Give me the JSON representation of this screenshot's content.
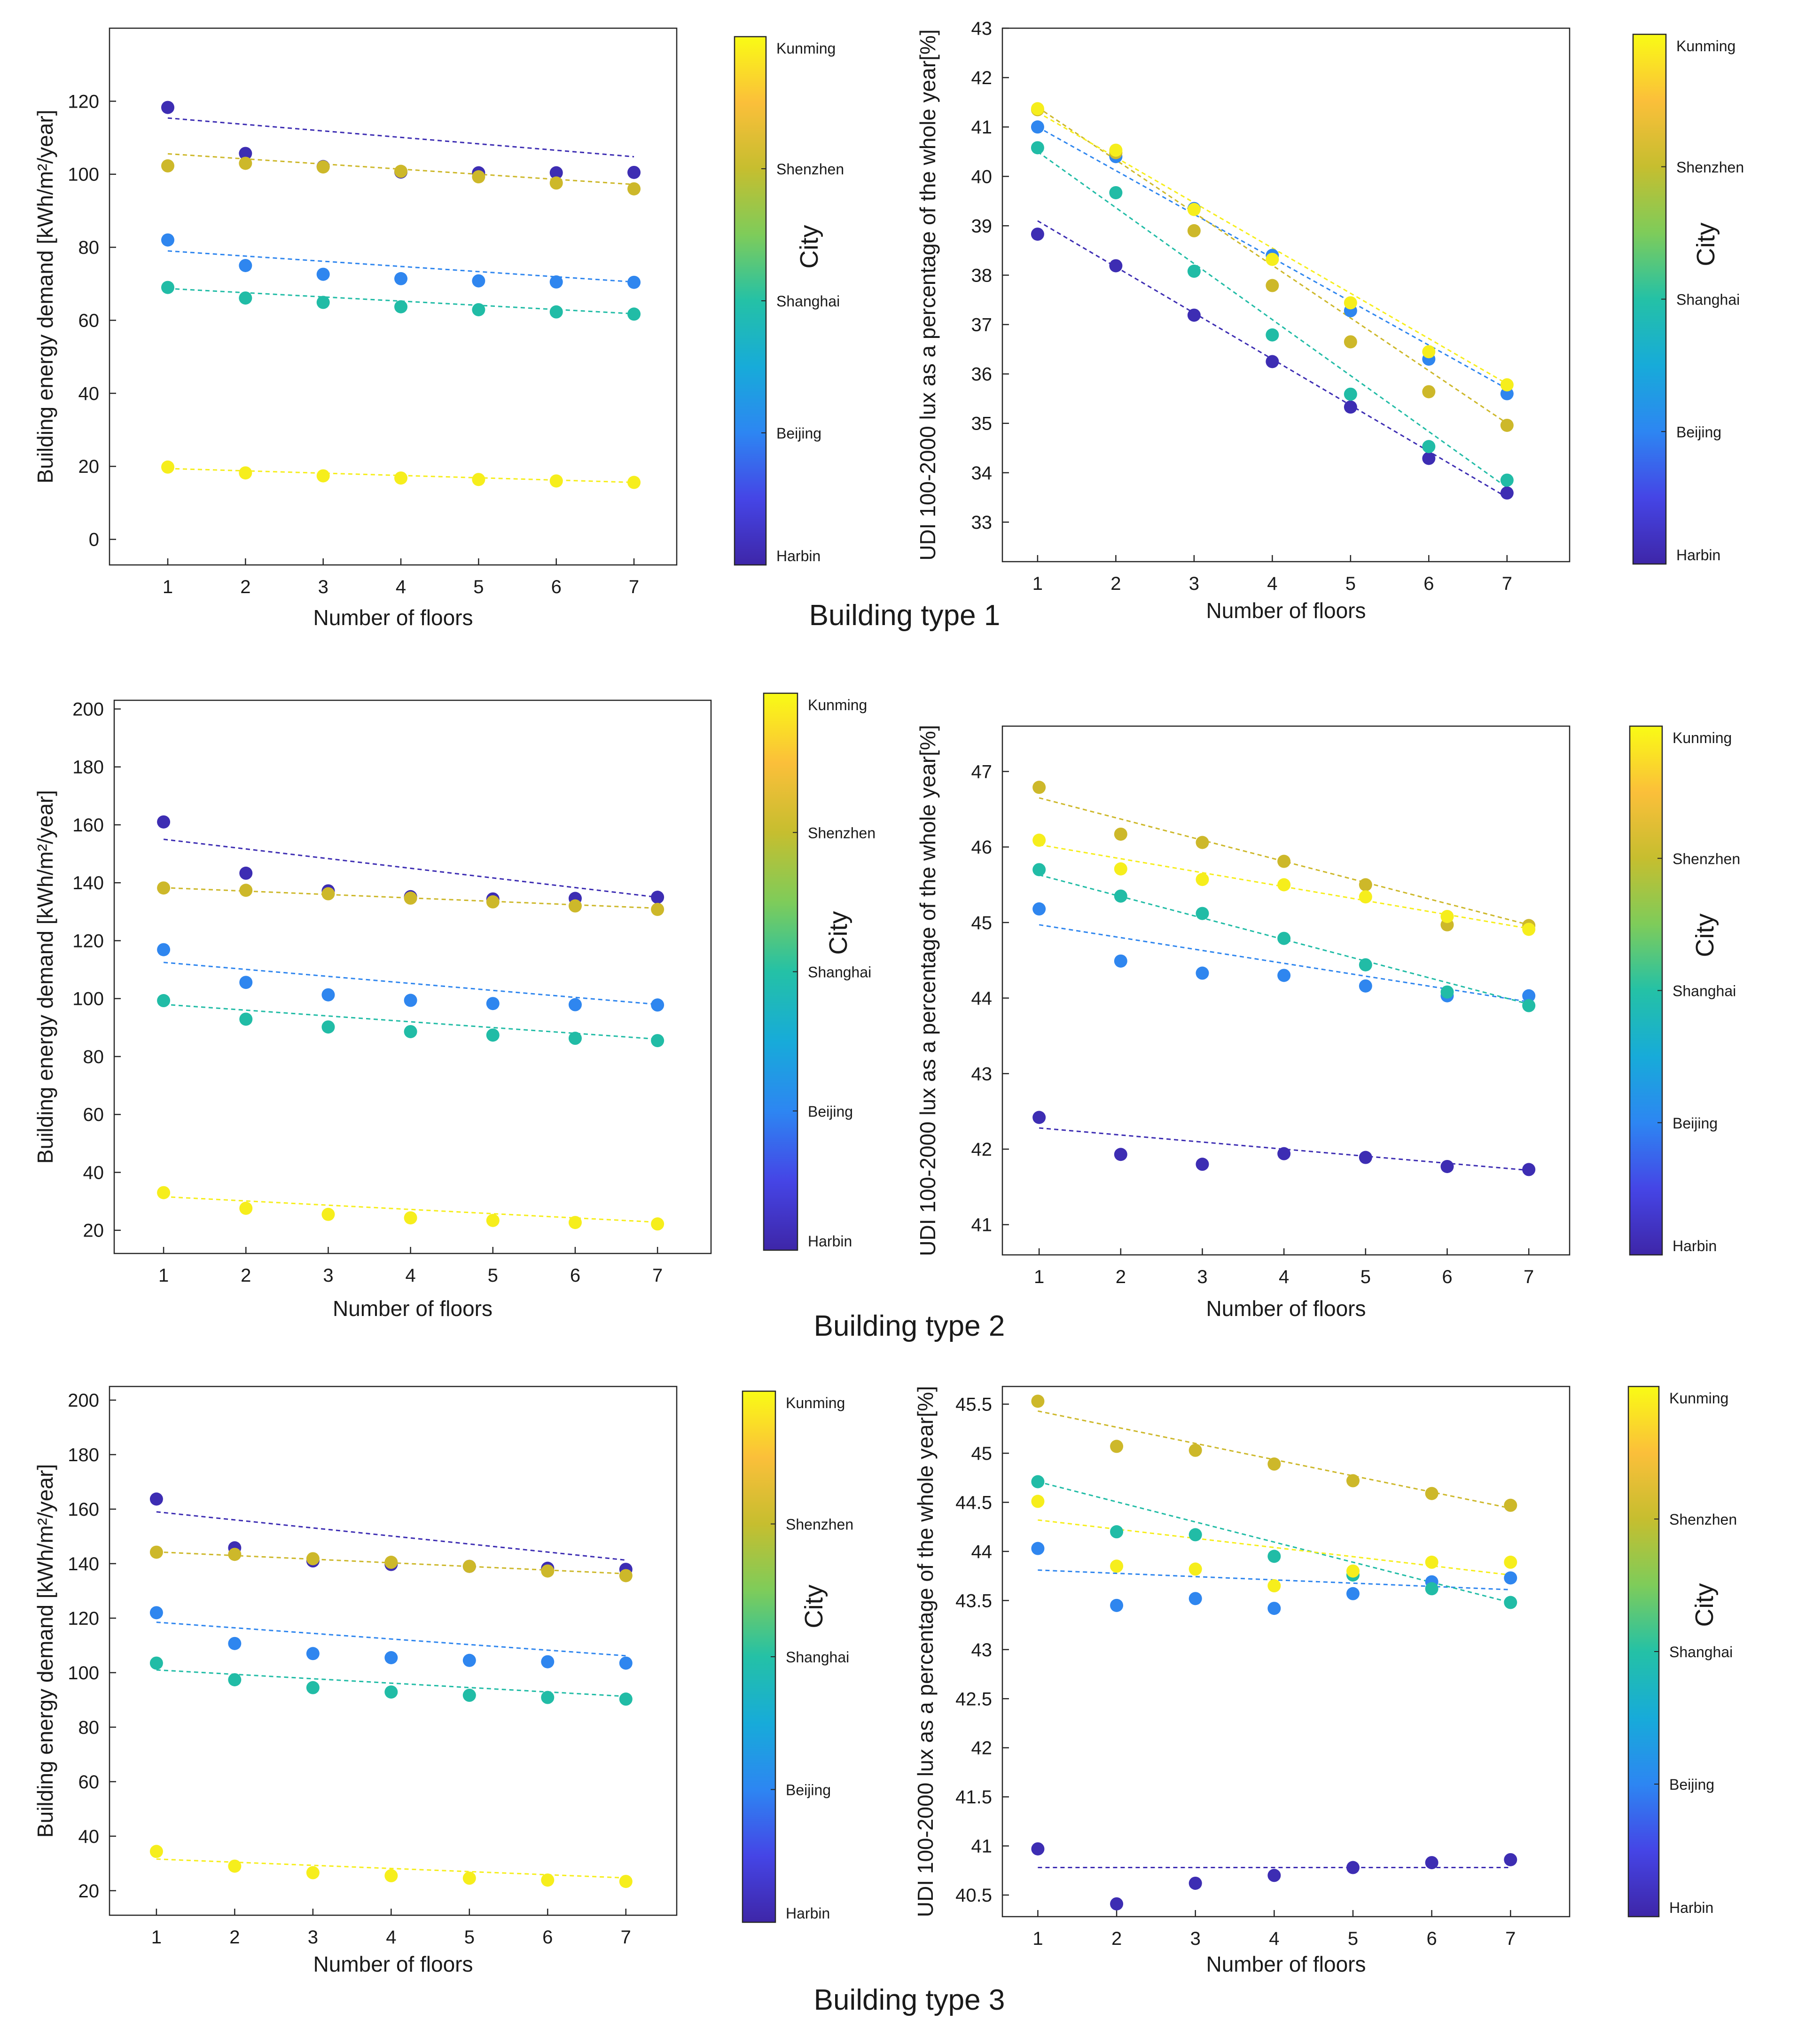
{
  "cities": [
    "Harbin",
    "Beijing",
    "Shanghai",
    "Shenzhen",
    "Kunming"
  ],
  "city_colors": {
    "Harbin": "#3d2db3",
    "Beijing": "#2f86ef",
    "Shanghai": "#21bca6",
    "Shenzhen": "#cdb82a",
    "Kunming": "#f6ee1c"
  },
  "colorbar_stops": [
    "#3e26a8",
    "#4545e6",
    "#2d86f2",
    "#17abd9",
    "#24c1a6",
    "#7ecc5a",
    "#c6be2f",
    "#fbbf3a",
    "#f9fb15"
  ],
  "colorbar_title": "City",
  "chart_data": [
    {
      "type": "scatter",
      "section": "Building type 1",
      "panel": "energy",
      "xlabel": "Number of floors",
      "ylabel": "Building energy demand [kWh/m²/year]",
      "x": [
        1,
        2,
        3,
        4,
        5,
        6,
        7
      ],
      "xlim": [
        0.25,
        7.55
      ],
      "ylim": [
        -7,
        140
      ],
      "yticks": [
        0,
        20,
        40,
        60,
        80,
        100,
        120
      ],
      "ytick_labels": [
        "0",
        "20",
        "40",
        "60",
        "80",
        "100",
        "120"
      ],
      "series": [
        {
          "name": "Harbin",
          "values": [
            118.3,
            105.7,
            102.1,
            100.6,
            100.4,
            100.4,
            100.5
          ],
          "trend": [
            115.4,
            104.8
          ]
        },
        {
          "name": "Beijing",
          "values": [
            82.0,
            75.0,
            72.6,
            71.4,
            70.8,
            70.5,
            70.4
          ],
          "trend": [
            79.0,
            70.5
          ]
        },
        {
          "name": "Shanghai",
          "values": [
            69.0,
            66.1,
            64.9,
            63.7,
            62.9,
            62.3,
            61.7
          ],
          "trend": [
            68.7,
            61.8
          ]
        },
        {
          "name": "Shenzhen",
          "values": [
            102.3,
            103.0,
            102.0,
            100.8,
            99.3,
            97.6,
            96.0
          ],
          "trend": [
            105.6,
            97.2
          ]
        },
        {
          "name": "Kunming",
          "values": [
            19.8,
            18.2,
            17.4,
            16.8,
            16.4,
            16.0,
            15.6
          ],
          "trend": [
            19.4,
            15.6
          ]
        }
      ]
    },
    {
      "type": "scatter",
      "section": "Building type 1",
      "panel": "udi",
      "xlabel": "Number of floors",
      "ylabel": "UDI 100-2000 lux as a percentage of the whole year[%]",
      "x": [
        1,
        2,
        3,
        4,
        5,
        6,
        7
      ],
      "xlim": [
        0.55,
        7.8
      ],
      "ylim": [
        32.2,
        43.0
      ],
      "yticks": [
        33,
        34,
        35,
        36,
        37,
        38,
        39,
        40,
        41,
        42,
        43
      ],
      "ytick_labels": [
        "33",
        "34",
        "35",
        "36",
        "37",
        "38",
        "39",
        "40",
        "41",
        "42",
        "43"
      ],
      "series": [
        {
          "name": "Harbin",
          "values": [
            38.83,
            38.19,
            37.19,
            36.25,
            35.33,
            34.29,
            33.59
          ],
          "trend": [
            39.1,
            33.5
          ]
        },
        {
          "name": "Beijing",
          "values": [
            41.0,
            40.4,
            39.35,
            38.4,
            37.28,
            36.3,
            35.6
          ],
          "trend": [
            41.0,
            35.7
          ]
        },
        {
          "name": "Shanghai",
          "values": [
            40.58,
            39.67,
            38.08,
            36.79,
            35.59,
            34.53,
            33.85
          ],
          "trend": [
            40.5,
            33.7
          ]
        },
        {
          "name": "Shenzhen",
          "values": [
            41.35,
            40.48,
            38.9,
            37.79,
            36.65,
            35.64,
            34.96
          ],
          "trend": [
            41.4,
            35.0
          ]
        },
        {
          "name": "Kunming",
          "values": [
            41.37,
            40.53,
            39.33,
            38.32,
            37.44,
            36.45,
            35.78
          ],
          "trend": [
            41.3,
            35.8
          ]
        }
      ]
    },
    {
      "type": "scatter",
      "section": "Building type 2",
      "panel": "energy",
      "xlabel": "Number of floors",
      "ylabel": "Building energy demand [kWh/m²/year]",
      "x": [
        1,
        2,
        3,
        4,
        5,
        6,
        7
      ],
      "xlim": [
        0.4,
        7.65
      ],
      "ylim": [
        12,
        203
      ],
      "yticks": [
        20,
        40,
        60,
        80,
        100,
        120,
        140,
        160,
        180,
        200
      ],
      "ytick_labels": [
        "20",
        "40",
        "60",
        "80",
        "100",
        "120",
        "140",
        "160",
        "180",
        "200"
      ],
      "series": [
        {
          "name": "Harbin",
          "values": [
            161.0,
            143.3,
            137.2,
            135.2,
            134.4,
            134.6,
            135.0
          ],
          "trend": [
            155.0,
            135.0
          ]
        },
        {
          "name": "Beijing",
          "values": [
            116.9,
            105.6,
            101.3,
            99.4,
            98.3,
            97.9,
            97.8
          ],
          "trend": [
            112.5,
            98.0
          ]
        },
        {
          "name": "Shanghai",
          "values": [
            99.3,
            92.9,
            90.2,
            88.6,
            87.4,
            86.3,
            85.5
          ],
          "trend": [
            98.0,
            86.0
          ]
        },
        {
          "name": "Shenzhen",
          "values": [
            138.2,
            137.4,
            136.2,
            134.7,
            133.4,
            132.0,
            130.8
          ],
          "trend": [
            138.3,
            131.2
          ]
        },
        {
          "name": "Kunming",
          "values": [
            33.0,
            27.6,
            25.5,
            24.3,
            23.4,
            22.7,
            22.2
          ],
          "trend": [
            31.6,
            22.8
          ]
        }
      ]
    },
    {
      "type": "scatter",
      "section": "Building type 2",
      "panel": "udi",
      "xlabel": "Number of floors",
      "ylabel": "UDI 100-2000 lux as a percentage of the whole year[%]",
      "x": [
        1,
        2,
        3,
        4,
        5,
        6,
        7
      ],
      "xlim": [
        0.55,
        7.5
      ],
      "ylim": [
        40.6,
        47.6
      ],
      "yticks": [
        41,
        42,
        43,
        44,
        45,
        46,
        47
      ],
      "ytick_labels": [
        "41",
        "42",
        "43",
        "44",
        "45",
        "46",
        "47"
      ],
      "series": [
        {
          "name": "Harbin",
          "values": [
            42.42,
            41.93,
            41.8,
            41.94,
            41.89,
            41.77,
            41.73
          ],
          "trend": [
            42.28,
            41.72
          ]
        },
        {
          "name": "Beijing",
          "values": [
            45.18,
            44.49,
            44.33,
            44.3,
            44.16,
            44.03,
            44.03
          ],
          "trend": [
            44.97,
            43.95
          ]
        },
        {
          "name": "Shanghai",
          "values": [
            45.7,
            45.35,
            45.12,
            44.79,
            44.44,
            44.08,
            43.9
          ],
          "trend": [
            45.63,
            43.92
          ]
        },
        {
          "name": "Shenzhen",
          "values": [
            46.79,
            46.17,
            46.06,
            45.81,
            45.5,
            44.97,
            44.96
          ],
          "trend": [
            46.65,
            44.97
          ]
        },
        {
          "name": "Kunming",
          "values": [
            46.09,
            45.71,
            45.57,
            45.5,
            45.34,
            45.08,
            44.91
          ],
          "trend": [
            46.03,
            44.92
          ]
        }
      ]
    },
    {
      "type": "scatter",
      "section": "Building type 3",
      "panel": "energy",
      "xlabel": "Number of floors",
      "ylabel": "Building energy demand [kWh/m²/year]",
      "x": [
        1,
        2,
        3,
        4,
        5,
        6,
        7
      ],
      "xlim": [
        0.4,
        7.65
      ],
      "ylim": [
        11,
        205
      ],
      "yticks": [
        20,
        40,
        60,
        80,
        100,
        120,
        140,
        160,
        180,
        200
      ],
      "ytick_labels": [
        "20",
        "40",
        "60",
        "80",
        "100",
        "120",
        "140",
        "160",
        "180",
        "200"
      ],
      "series": [
        {
          "name": "Harbin",
          "values": [
            163.7,
            145.8,
            141.0,
            139.7,
            139.0,
            138.3,
            137.9
          ],
          "trend": [
            159.0,
            141.3
          ]
        },
        {
          "name": "Beijing",
          "values": [
            122.0,
            110.7,
            107.0,
            105.5,
            104.5,
            104.0,
            103.5
          ],
          "trend": [
            118.5,
            106.2
          ]
        },
        {
          "name": "Shanghai",
          "values": [
            103.5,
            97.4,
            94.5,
            92.9,
            91.7,
            90.9,
            90.3
          ],
          "trend": [
            101.0,
            91.3
          ]
        },
        {
          "name": "Shenzhen",
          "values": [
            144.2,
            143.4,
            141.8,
            140.5,
            139.0,
            137.3,
            135.6
          ],
          "trend": [
            144.3,
            136.3
          ]
        },
        {
          "name": "Kunming",
          "values": [
            34.4,
            29.0,
            26.6,
            25.5,
            24.6,
            23.9,
            23.4
          ],
          "trend": [
            31.6,
            24.7
          ]
        }
      ]
    },
    {
      "type": "scatter",
      "section": "Building type 3",
      "panel": "udi",
      "xlabel": "Number of floors",
      "ylabel": "UDI 100-2000 lux as a percentage of the whole year[%]",
      "x": [
        1,
        2,
        3,
        4,
        5,
        6,
        7
      ],
      "xlim": [
        0.55,
        7.75
      ],
      "ylim": [
        40.28,
        45.68
      ],
      "yticks": [
        40.5,
        41,
        41.5,
        42,
        42.5,
        43,
        43.5,
        44,
        44.5,
        45,
        45.5
      ],
      "ytick_labels": [
        "40.5",
        "41",
        "41.5",
        "42",
        "42.5",
        "43",
        "43.5",
        "44",
        "44.5",
        "45",
        "45.5"
      ],
      "series": [
        {
          "name": "Harbin",
          "values": [
            40.97,
            40.41,
            40.62,
            40.7,
            40.78,
            40.83,
            40.86
          ],
          "trend": [
            40.78,
            40.78
          ]
        },
        {
          "name": "Beijing",
          "values": [
            44.03,
            43.45,
            43.52,
            43.42,
            43.57,
            43.69,
            43.73
          ],
          "trend": [
            43.81,
            43.61
          ]
        },
        {
          "name": "Shanghai",
          "values": [
            44.71,
            44.2,
            44.17,
            43.95,
            43.76,
            43.62,
            43.48
          ],
          "trend": [
            44.71,
            43.48
          ]
        },
        {
          "name": "Shenzhen",
          "values": [
            45.53,
            45.07,
            45.03,
            44.89,
            44.72,
            44.59,
            44.47
          ],
          "trend": [
            45.43,
            44.44
          ]
        },
        {
          "name": "Kunming",
          "values": [
            44.51,
            43.85,
            43.82,
            43.65,
            43.8,
            43.89,
            43.89
          ],
          "trend": [
            44.32,
            43.76
          ]
        }
      ]
    }
  ]
}
